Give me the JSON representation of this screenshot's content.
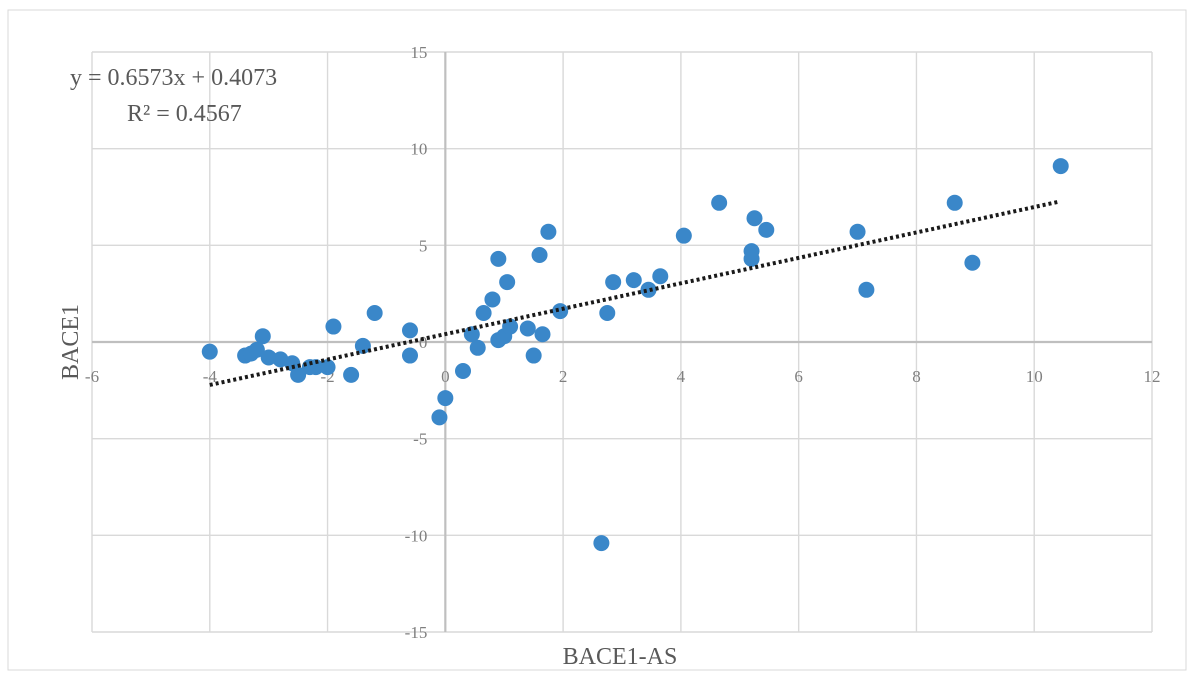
{
  "chart_data": {
    "type": "scatter",
    "title": "",
    "xlabel": "BACE1-AS",
    "ylabel": "BACE1",
    "xlim": [
      -6,
      12
    ],
    "ylim": [
      -15,
      15
    ],
    "x_ticks": [
      -6,
      -4,
      -2,
      0,
      2,
      4,
      6,
      8,
      10,
      12
    ],
    "y_ticks": [
      -15,
      -10,
      -5,
      0,
      5,
      10,
      15
    ],
    "x_tick_labels": [
      "-6",
      "-4",
      "-2",
      "0",
      "2",
      "4",
      "6",
      "8",
      "10",
      "12"
    ],
    "y_tick_labels": [
      "-15",
      "-10",
      "-5",
      "0",
      "5",
      "10",
      "15"
    ],
    "grid": true,
    "marker_color": "#3a87c9",
    "trendline": {
      "type": "linear",
      "slope": 0.6573,
      "intercept": 0.4073,
      "x_range": [
        -4.0,
        10.4
      ],
      "equation_label": "y = 0.6573x + 0.4073",
      "r_squared_label": "R² = 0.4567"
    },
    "series": [
      {
        "points": [
          [
            -4.0,
            -0.5
          ],
          [
            -3.4,
            -0.7
          ],
          [
            -3.3,
            -0.6
          ],
          [
            -3.2,
            -0.4
          ],
          [
            -3.1,
            0.3
          ],
          [
            -3.0,
            -0.8
          ],
          [
            -2.8,
            -0.9
          ],
          [
            -2.6,
            -1.1
          ],
          [
            -2.5,
            -1.7
          ],
          [
            -2.3,
            -1.3
          ],
          [
            -2.2,
            -1.3
          ],
          [
            -2.0,
            -1.3
          ],
          [
            -1.9,
            0.8
          ],
          [
            -1.6,
            -1.7
          ],
          [
            -1.4,
            -0.2
          ],
          [
            -1.2,
            1.5
          ],
          [
            -0.6,
            0.6
          ],
          [
            -0.6,
            -0.7
          ],
          [
            -0.1,
            -3.9
          ],
          [
            0.0,
            -2.9
          ],
          [
            0.3,
            -1.5
          ],
          [
            0.45,
            0.4
          ],
          [
            0.55,
            -0.3
          ],
          [
            0.65,
            1.5
          ],
          [
            0.8,
            2.2
          ],
          [
            0.9,
            4.3
          ],
          [
            0.9,
            0.1
          ],
          [
            1.0,
            0.3
          ],
          [
            1.05,
            3.1
          ],
          [
            1.1,
            0.8
          ],
          [
            1.4,
            0.7
          ],
          [
            1.5,
            -0.7
          ],
          [
            1.6,
            4.5
          ],
          [
            1.65,
            0.4
          ],
          [
            1.75,
            5.7
          ],
          [
            1.95,
            1.6
          ],
          [
            2.65,
            -10.4
          ],
          [
            2.75,
            1.5
          ],
          [
            2.85,
            3.1
          ],
          [
            3.2,
            3.2
          ],
          [
            3.45,
            2.7
          ],
          [
            3.65,
            3.4
          ],
          [
            4.05,
            5.5
          ],
          [
            4.65,
            7.2
          ],
          [
            5.2,
            4.3
          ],
          [
            5.2,
            4.7
          ],
          [
            5.25,
            6.4
          ],
          [
            5.45,
            5.8
          ],
          [
            7.0,
            5.7
          ],
          [
            7.15,
            2.7
          ],
          [
            8.65,
            7.2
          ],
          [
            8.95,
            4.1
          ],
          [
            10.45,
            9.1
          ]
        ]
      }
    ]
  }
}
